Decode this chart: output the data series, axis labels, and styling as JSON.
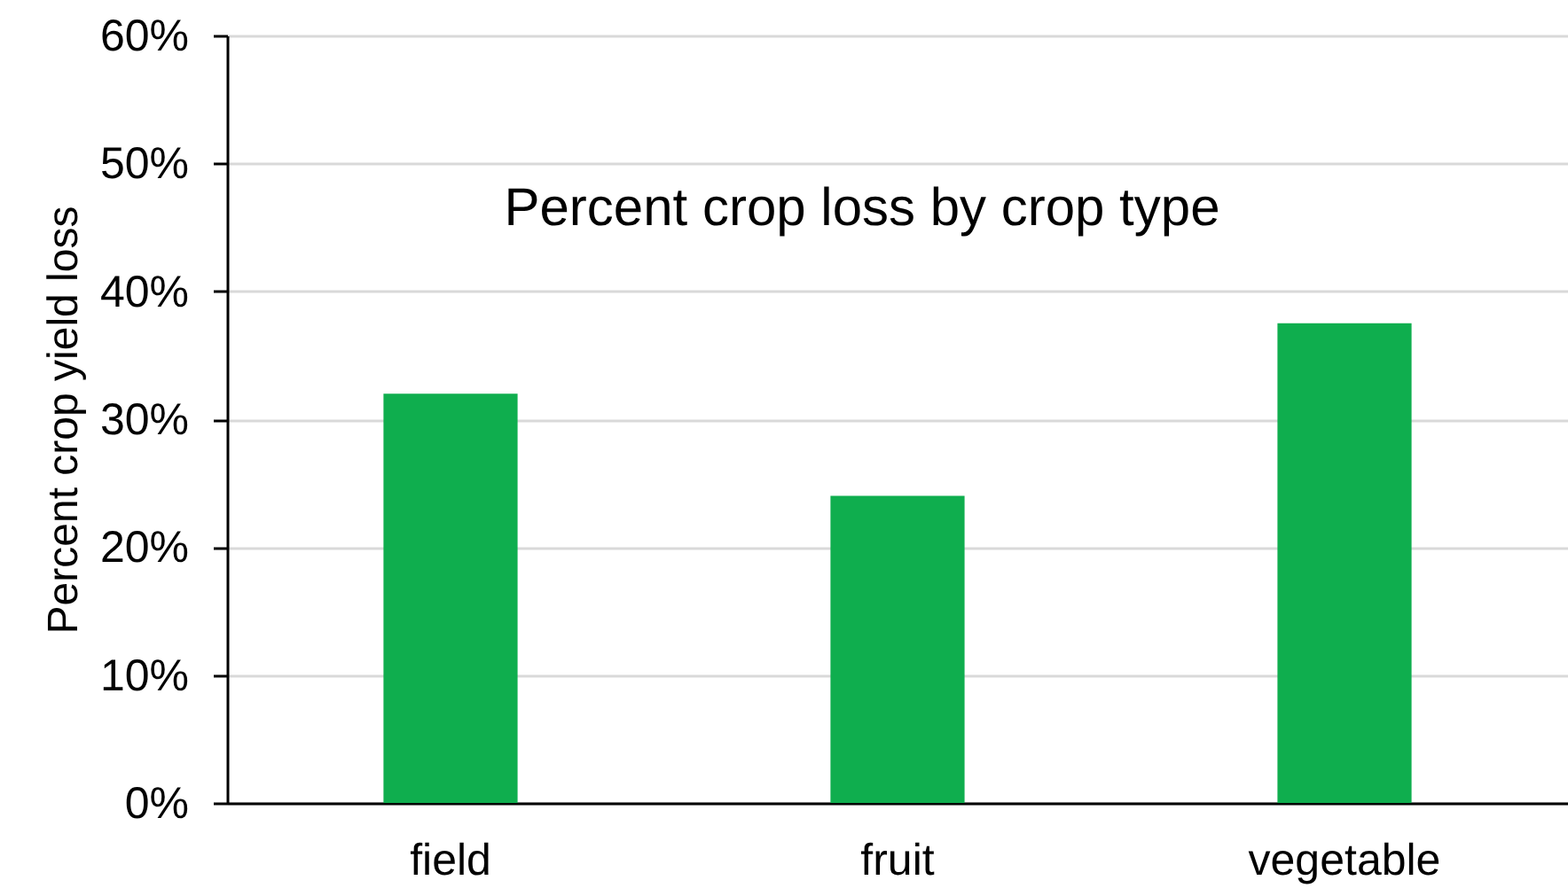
{
  "chart_data": {
    "type": "bar",
    "title": "Percent crop loss by crop type",
    "ylabel": "Percent crop yield loss",
    "categories": [
      "field",
      "fruit",
      "vegetable"
    ],
    "values": [
      32,
      24,
      37.5
    ],
    "color": "#0fae4e",
    "ylim": [
      0,
      60
    ],
    "yticks": [
      {
        "value": 0,
        "label": "0%"
      },
      {
        "value": 10,
        "label": "10%"
      },
      {
        "value": 20,
        "label": "20%"
      },
      {
        "value": 30,
        "label": "30%"
      },
      {
        "value": 40,
        "label": "40%"
      },
      {
        "value": 50,
        "label": "50%"
      },
      {
        "value": 60,
        "label": "60%"
      }
    ],
    "grid": "y"
  }
}
